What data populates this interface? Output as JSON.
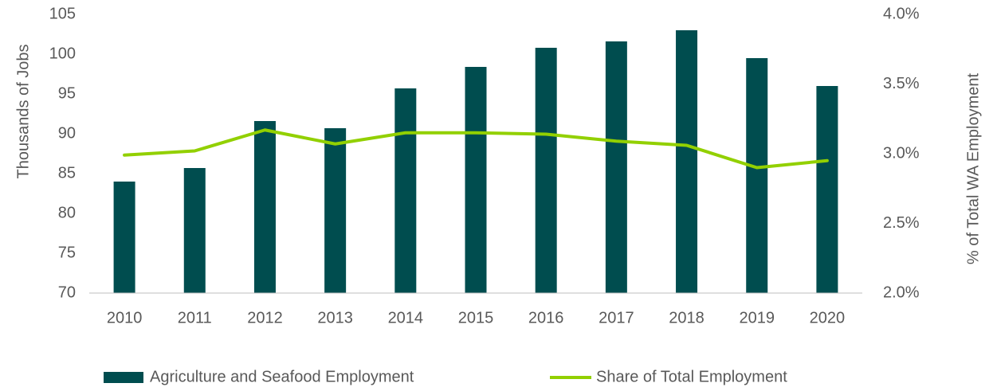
{
  "chart_data": {
    "type": "combo",
    "categories": [
      "2010",
      "2011",
      "2012",
      "2013",
      "2014",
      "2015",
      "2016",
      "2017",
      "2018",
      "2019",
      "2020"
    ],
    "series": [
      {
        "name": "Agriculture and Seafood Employment",
        "type": "bar",
        "color": "#004d4f",
        "axis": "y",
        "values": [
          84,
          85.7,
          91.6,
          90.7,
          95.7,
          98.4,
          100.8,
          101.6,
          103,
          99.5,
          96
        ]
      },
      {
        "name": "Share of Total Employment",
        "type": "line",
        "color": "#92d000",
        "axis": "y2",
        "values": [
          2.99,
          3.02,
          3.17,
          3.07,
          3.15,
          3.15,
          3.14,
          3.09,
          3.06,
          2.9,
          2.95
        ]
      }
    ],
    "ylabel": "Thousands of Jobs",
    "y2label": "% of Total WA Employment",
    "ylim": [
      70,
      105
    ],
    "yticks": [
      70,
      75,
      80,
      85,
      90,
      95,
      100,
      105
    ],
    "y2lim": [
      2,
      4
    ],
    "y2ticks": [
      {
        "value": 2,
        "label": "2.0%"
      },
      {
        "value": 2.5,
        "label": "2.5%"
      },
      {
        "value": 3,
        "label": "3.0%"
      },
      {
        "value": 3.5,
        "label": "3.5%"
      },
      {
        "value": 4,
        "label": "4.0%"
      }
    ],
    "grid": false,
    "legend": "bottom"
  }
}
